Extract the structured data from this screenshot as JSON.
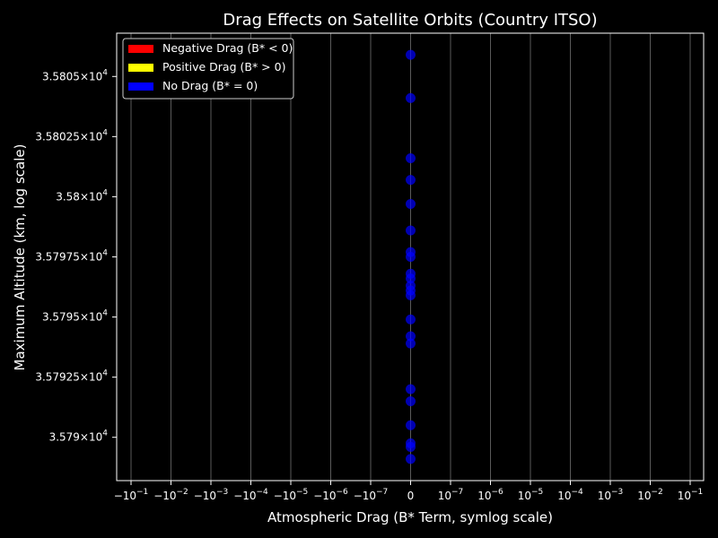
{
  "chart_data": {
    "type": "scatter",
    "title": "Drag Effects on Satellite Orbits (Country ITSO)",
    "xlabel": "Atmospheric Drag (B* Term, symlog scale)",
    "ylabel": "Maximum Altitude (km, log scale)",
    "x_scale": "symlog",
    "y_scale": "log",
    "grid": "vertical",
    "legend_placement": "top-left",
    "x_ticks": [
      {
        "base": "−10",
        "exp": "−1"
      },
      {
        "base": "−10",
        "exp": "−2"
      },
      {
        "base": "−10",
        "exp": "−3"
      },
      {
        "base": "−10",
        "exp": "−4"
      },
      {
        "base": "−10",
        "exp": "−5"
      },
      {
        "base": "−10",
        "exp": "−6"
      },
      {
        "base": "−10",
        "exp": "−7"
      },
      {
        "base": "0",
        "exp": ""
      },
      {
        "base": "10",
        "exp": "−7"
      },
      {
        "base": "10",
        "exp": "−6"
      },
      {
        "base": "10",
        "exp": "−5"
      },
      {
        "base": "10",
        "exp": "−4"
      },
      {
        "base": "10",
        "exp": "−3"
      },
      {
        "base": "10",
        "exp": "−2"
      },
      {
        "base": "10",
        "exp": "−1"
      }
    ],
    "y_ticks": [
      {
        "value": 35790,
        "mantissa": "3.579",
        "exp": "4"
      },
      {
        "value": 35792.5,
        "mantissa": "3.57925",
        "exp": "4"
      },
      {
        "value": 35795,
        "mantissa": "3.5795",
        "exp": "4"
      },
      {
        "value": 35797.5,
        "mantissa": "3.57975",
        "exp": "4"
      },
      {
        "value": 35800,
        "mantissa": "3.58",
        "exp": "4"
      },
      {
        "value": 35802.5,
        "mantissa": "3.58025",
        "exp": "4"
      },
      {
        "value": 35805,
        "mantissa": "3.5805",
        "exp": "4"
      }
    ],
    "ylim": [
      35788.2,
      35806.8
    ],
    "legend": [
      {
        "label": "Negative Drag (B* < 0)",
        "color": "#ff0000"
      },
      {
        "label": "Positive Drag (B* > 0)",
        "color": "#ffff00"
      },
      {
        "label": "No Drag (B* = 0)",
        "color": "#0000ff"
      }
    ],
    "series": [
      {
        "name": "No Drag (B* = 0)",
        "color": "#0000ff",
        "points": [
          {
            "x": 0,
            "y": 35805.9
          },
          {
            "x": 0,
            "y": 35804.1
          },
          {
            "x": 0,
            "y": 35801.6
          },
          {
            "x": 0,
            "y": 35800.7
          },
          {
            "x": 0,
            "y": 35799.7
          },
          {
            "x": 0,
            "y": 35798.6
          },
          {
            "x": 0,
            "y": 35797.7
          },
          {
            "x": 0,
            "y": 35797.5
          },
          {
            "x": 0,
            "y": 35796.8
          },
          {
            "x": 0,
            "y": 35796.6
          },
          {
            "x": 0,
            "y": 35796.3
          },
          {
            "x": 0,
            "y": 35796.1
          },
          {
            "x": 0,
            "y": 35795.9
          },
          {
            "x": 0,
            "y": 35794.9
          },
          {
            "x": 0,
            "y": 35794.2
          },
          {
            "x": 0,
            "y": 35793.9
          },
          {
            "x": 0,
            "y": 35792.0
          },
          {
            "x": 0,
            "y": 35791.5
          },
          {
            "x": 0,
            "y": 35790.5
          },
          {
            "x": 0,
            "y": 35789.75
          },
          {
            "x": 0,
            "y": 35789.6
          },
          {
            "x": 0,
            "y": 35789.1
          }
        ]
      }
    ]
  }
}
